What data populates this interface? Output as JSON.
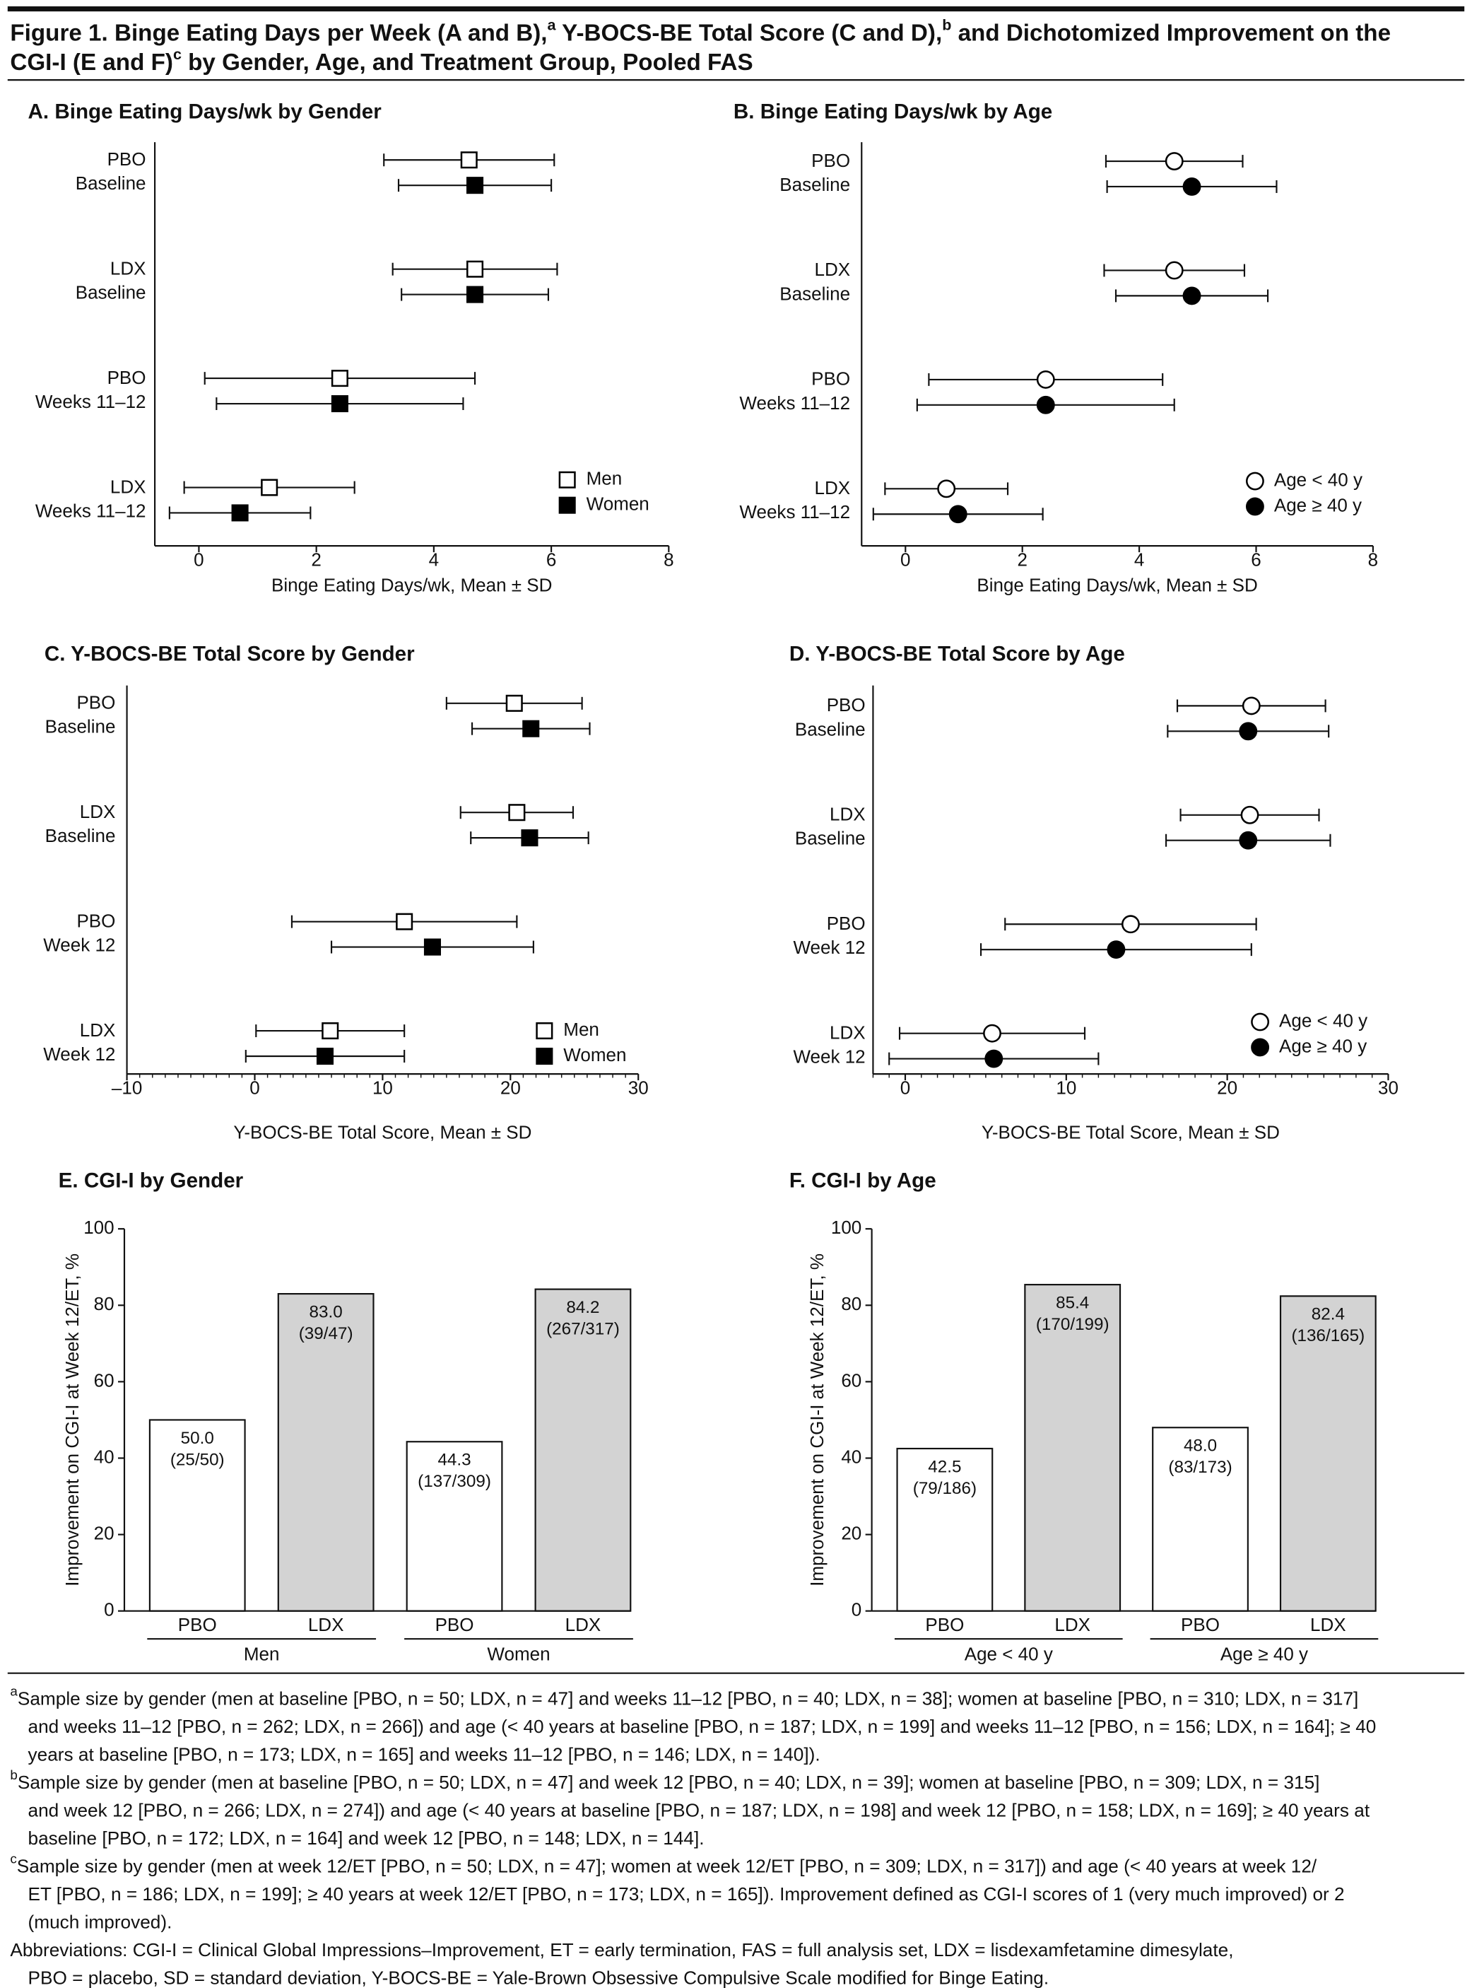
{
  "title": {
    "lines": [
      [
        "Figure 1. Binge Eating Days per Week (A and B),",
        "a",
        " Y-BOCS-BE Total Score (C and D),",
        "b",
        " and Dichotomized Improvement on the"
      ],
      [
        "CGI-I (E and F)",
        "c",
        " by Gender, Age, and Treatment Group, Pooled FAS"
      ]
    ]
  },
  "chart_data": [
    {
      "type": "errorbar",
      "title": "A. Binge Eating Days/wk by Gender",
      "xlabel": "Binge Eating Days/wk, Mean ± SD",
      "categories": [
        [
          "PBO",
          "Baseline"
        ],
        [
          "LDX",
          "Baseline"
        ],
        [
          "PBO",
          "Weeks 11–12"
        ],
        [
          "LDX",
          "Weeks 11–12"
        ]
      ],
      "series": [
        {
          "name": "Men",
          "color": "#000000",
          "marker": "square",
          "filled": false,
          "values": [
            4.6,
            4.7,
            2.4,
            1.2
          ],
          "errors": [
            1.45,
            1.4,
            2.3,
            1.45
          ]
        },
        {
          "name": "Women",
          "color": "#000000",
          "marker": "square",
          "filled": true,
          "values": [
            4.7,
            4.7,
            2.4,
            0.7
          ],
          "errors": [
            1.3,
            1.25,
            2.1,
            1.2
          ]
        }
      ],
      "xlim": [
        -0.75,
        8
      ],
      "xticks": [
        0,
        2,
        4,
        6,
        8
      ],
      "legend": "lower right"
    },
    {
      "type": "errorbar",
      "title": "B. Binge Eating Days/wk by Age",
      "xlabel": "Binge Eating Days/wk, Mean ± SD",
      "categories": [
        [
          "PBO",
          "Baseline"
        ],
        [
          "LDX",
          "Baseline"
        ],
        [
          "PBO",
          "Weeks 11–12"
        ],
        [
          "LDX",
          "Weeks 11–12"
        ]
      ],
      "series": [
        {
          "name": "Age < 40 y",
          "color": "#000000",
          "marker": "circle",
          "filled": false,
          "values": [
            4.6,
            4.6,
            2.4,
            0.7
          ],
          "errors": [
            1.17,
            1.2,
            2.0,
            1.05
          ]
        },
        {
          "name": "Age ≥ 40 y",
          "color": "#000000",
          "marker": "circle",
          "filled": true,
          "values": [
            4.9,
            4.9,
            2.4,
            0.9
          ],
          "errors": [
            1.45,
            1.3,
            2.2,
            1.45
          ]
        }
      ],
      "xlim": [
        -0.75,
        8
      ],
      "xticks": [
        0,
        2,
        4,
        6,
        8
      ],
      "legend": "lower right"
    },
    {
      "type": "errorbar",
      "title": "C. Y-BOCS-BE Total Score by Gender",
      "xlabel": "Y-BOCS-BE Total Score, Mean ± SD",
      "categories": [
        [
          "PBO",
          "Baseline"
        ],
        [
          "LDX",
          "Baseline"
        ],
        [
          "PBO",
          "Week 12"
        ],
        [
          "LDX",
          "Week 12"
        ]
      ],
      "series": [
        {
          "name": "Men",
          "color": "#000000",
          "marker": "square",
          "filled": false,
          "values": [
            20.3,
            20.5,
            11.7,
            5.9
          ],
          "errors": [
            5.3,
            4.4,
            8.8,
            5.8
          ]
        },
        {
          "name": "Women",
          "color": "#000000",
          "marker": "square",
          "filled": true,
          "values": [
            21.6,
            21.5,
            13.9,
            5.5
          ],
          "errors": [
            4.6,
            4.6,
            7.9,
            6.2
          ]
        }
      ],
      "xlim": [
        -10,
        30
      ],
      "xticks": [
        {
          "value": -10,
          "label": "–10"
        },
        0,
        10,
        20,
        30
      ],
      "minor_step": 1,
      "legend": "lower right"
    },
    {
      "type": "errorbar",
      "title": "D. Y-BOCS-BE Total Score by Age",
      "xlabel": "Y-BOCS-BE Total Score, Mean ± SD",
      "categories": [
        [
          "PBO",
          "Baseline"
        ],
        [
          "LDX",
          "Baseline"
        ],
        [
          "PBO",
          "Week 12"
        ],
        [
          "LDX",
          "Week 12"
        ]
      ],
      "series": [
        {
          "name": "Age < 40 y",
          "color": "#000000",
          "marker": "circle",
          "filled": false,
          "values": [
            21.5,
            21.4,
            14.0,
            5.4
          ],
          "errors": [
            4.6,
            4.3,
            7.8,
            5.75
          ]
        },
        {
          "name": "Age ≥ 40 y",
          "color": "#000000",
          "marker": "circle",
          "filled": true,
          "values": [
            21.3,
            21.3,
            13.1,
            5.5
          ],
          "errors": [
            5.0,
            5.1,
            8.4,
            6.5
          ]
        }
      ],
      "xlim": [
        -2,
        30
      ],
      "xticks": [
        0,
        10,
        20,
        30
      ],
      "minor_step": 1,
      "legend": "lower right"
    },
    {
      "type": "bar",
      "title": "E. CGI-I by Gender",
      "ylabel": "Improvement on CGI-I at Week 12/ET, %",
      "categories": [
        "PBO",
        "LDX",
        "PBO",
        "LDX"
      ],
      "groups": [
        "Men",
        "Women"
      ],
      "colors": [
        "#ffffff",
        "#d3d3d3",
        "#ffffff",
        "#d3d3d3"
      ],
      "values": [
        50.0,
        83.0,
        44.3,
        84.2
      ],
      "value_labels": [
        "50.0",
        "83.0",
        "44.3",
        "84.2"
      ],
      "counts": [
        "(25/50)",
        "(39/47)",
        "(137/309)",
        "(267/317)"
      ],
      "ylim": [
        0,
        100
      ],
      "yticks": [
        0,
        20,
        40,
        60,
        80,
        100
      ]
    },
    {
      "type": "bar",
      "title": "F. CGI-I by Age",
      "ylabel": "Improvement on CGI-I at Week 12/ET, %",
      "categories": [
        "PBO",
        "LDX",
        "PBO",
        "LDX"
      ],
      "groups": [
        "Age < 40 y",
        "Age ≥ 40 y"
      ],
      "colors": [
        "#ffffff",
        "#d3d3d3",
        "#ffffff",
        "#d3d3d3"
      ],
      "values": [
        42.5,
        85.4,
        48.0,
        82.4
      ],
      "value_labels": [
        "42.5",
        "85.4",
        "48.0",
        "82.4"
      ],
      "counts": [
        "(79/186)",
        "(170/199)",
        "(83/173)",
        "(136/165)"
      ],
      "ylim": [
        0,
        100
      ],
      "yticks": [
        0,
        20,
        40,
        60,
        80,
        100
      ]
    }
  ],
  "footnotes": [
    {
      "mark": "a",
      "lines": [
        "Sample size by gender (men at baseline [PBO, n = 50; LDX, n = 47] and weeks 11–12 [PBO, n = 40; LDX, n = 38]; women at baseline [PBO, n = 310; LDX, n = 317]",
        "and weeks 11–12 [PBO, n = 262; LDX, n = 266]) and age (< 40 years at baseline [PBO, n = 187; LDX, n = 199] and weeks 11–12 [PBO, n = 156; LDX, n = 164]; ≥ 40",
        "years at baseline [PBO, n = 173; LDX, n = 165] and weeks 11–12 [PBO, n = 146; LDX, n = 140])."
      ]
    },
    {
      "mark": "b",
      "lines": [
        "Sample size by gender (men at baseline [PBO, n = 50; LDX, n = 47] and week 12 [PBO, n = 40; LDX, n = 39]; women at baseline [PBO, n = 309; LDX, n = 315]",
        "and week 12 [PBO, n = 266; LDX, n = 274]) and age (< 40 years at baseline [PBO, n = 187; LDX, n = 198] and week 12 [PBO, n = 158; LDX, n = 169]; ≥ 40 years at",
        "baseline [PBO, n = 172; LDX, n = 164] and week 12 [PBO, n = 148; LDX, n = 144]."
      ]
    },
    {
      "mark": "c",
      "lines": [
        "Sample size by gender (men at week 12/ET [PBO, n = 50; LDX, n = 47]; women at week 12/ET [PBO, n = 309; LDX, n = 317]) and age (< 40 years at week 12/",
        "ET [PBO, n = 186; LDX, n = 199]; ≥ 40 years at week 12/ET [PBO, n = 173; LDX, n = 165]). Improvement defined as CGI-I scores of 1 (very much improved) or 2",
        "(much improved)."
      ]
    },
    {
      "lines": [
        "Abbreviations: CGI-I = Clinical Global Impressions–Improvement, ET = early termination, FAS = full analysis set, LDX = lisdexamfetamine dimesylate,",
        "PBO = placebo, SD = standard deviation, Y-BOCS-BE = Yale-Brown Obsessive Compulsive Scale modified for Binge Eating."
      ]
    }
  ]
}
